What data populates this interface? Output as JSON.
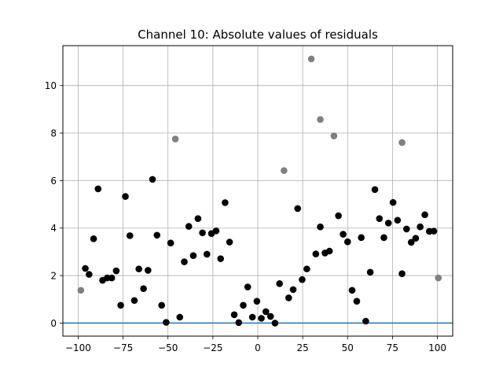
{
  "chart_data": {
    "type": "scatter",
    "title": "Channel 10: Absolute values of residuals",
    "xlabel": "",
    "ylabel": "",
    "xlim": [
      -108.5,
      108.5
    ],
    "ylim": [
      -0.55,
      11.68
    ],
    "xticks": [
      -100,
      -75,
      -50,
      -25,
      0,
      25,
      50,
      75,
      100
    ],
    "yticks": [
      0,
      2,
      4,
      6,
      8,
      10
    ],
    "grid": true,
    "hline": {
      "y": 0,
      "color": "#1f77b4"
    },
    "colors": {
      "inlier": "#000000",
      "outlier": "#808080",
      "grid": "#b0b0b0"
    },
    "series": [
      {
        "role": "inlier",
        "x": [
          -96.0,
          -93.9,
          -91.4,
          -88.9,
          -86.4,
          -83.8,
          -81.3,
          -78.8,
          -76.3,
          -73.7,
          -71.2,
          -68.7,
          -66.2,
          -63.6,
          -61.1,
          -58.6,
          -56.1,
          -53.5,
          -51.0,
          -48.5,
          -43.4,
          -40.9,
          -38.4,
          -35.9,
          -33.3,
          -30.8,
          -28.3,
          -25.8,
          -23.2,
          -20.7,
          -18.2,
          -15.7,
          -13.1,
          -10.6,
          -8.1,
          -5.6,
          -3.0,
          -0.5,
          2.0,
          4.5,
          7.1,
          9.6,
          12.1,
          17.2,
          19.7,
          22.2,
          24.7,
          27.3,
          32.3,
          34.8,
          37.4,
          39.9,
          44.9,
          47.5,
          50.0,
          52.5,
          55.1,
          57.6,
          60.1,
          62.6,
          65.2,
          67.7,
          70.2,
          72.7,
          75.3,
          77.8,
          80.3,
          82.8,
          85.4,
          87.9,
          90.4,
          93.0,
          95.5,
          98.0
        ],
        "y": [
          2.3,
          2.05,
          3.55,
          5.65,
          1.8,
          1.9,
          1.9,
          2.2,
          0.75,
          5.33,
          3.68,
          0.95,
          2.28,
          1.45,
          2.22,
          6.05,
          3.7,
          0.75,
          0.03,
          3.37,
          0.25,
          2.58,
          4.07,
          2.84,
          4.4,
          3.8,
          2.9,
          3.77,
          3.88,
          2.71,
          5.07,
          3.41,
          0.35,
          0.02,
          0.75,
          1.52,
          0.25,
          0.92,
          0.2,
          0.48,
          0.28,
          0.0,
          1.66,
          1.06,
          1.41,
          4.82,
          1.83,
          2.28,
          2.91,
          4.05,
          2.95,
          3.03,
          4.52,
          3.74,
          3.42,
          1.38,
          0.92,
          3.6,
          0.08,
          2.14,
          5.62,
          4.4,
          3.6,
          4.21,
          5.08,
          4.33,
          2.08,
          3.96,
          3.4,
          3.57,
          4.05,
          4.56,
          3.86,
          3.87
        ]
      },
      {
        "role": "outlier",
        "x": [
          -98.5,
          -45.9,
          14.6,
          29.8,
          34.8,
          42.4,
          80.3,
          100.5
        ],
        "y": [
          1.38,
          7.75,
          6.42,
          11.12,
          8.57,
          7.88,
          7.6,
          1.9
        ]
      }
    ]
  }
}
